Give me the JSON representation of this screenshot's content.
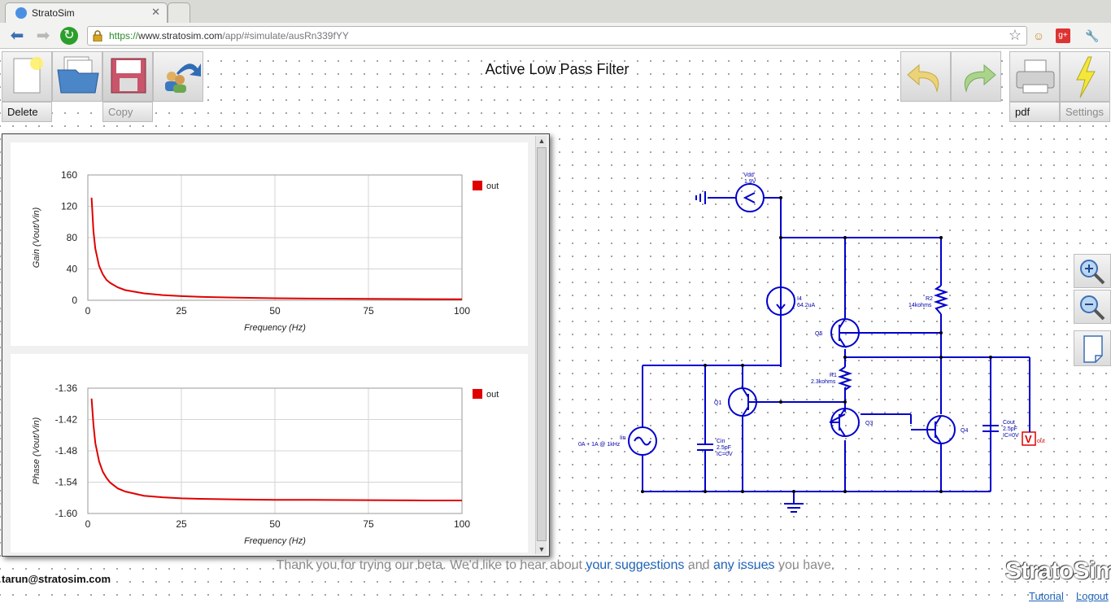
{
  "browser": {
    "tab_title": "StratoSim",
    "tab_close": "✕",
    "url_scheme": "https://",
    "url_host": "www.stratosim.com",
    "url_path": "/app/#simulate/ausRn339fYY"
  },
  "toolbar": {
    "delete_label": "Delete",
    "copy_label": "Copy",
    "pdf_label": "pdf",
    "settings_label": "Settings"
  },
  "document": {
    "title": "Active Low Pass Filter"
  },
  "colors": {
    "series": "#e00000",
    "schematic": "#0000cc",
    "link": "#1f63b8"
  },
  "chart_data": [
    {
      "type": "line",
      "title": "",
      "xlabel": "Frequency (Hz)",
      "ylabel": "Gain (Vout/Vin)",
      "xlim": [
        0,
        100
      ],
      "ylim": [
        0,
        160
      ],
      "x_ticks": [
        "0",
        "25",
        "50",
        "75",
        "100"
      ],
      "y_ticks": [
        "160",
        "120",
        "80",
        "40",
        "0"
      ],
      "grid": true,
      "legend": "top-right",
      "series": [
        {
          "name": "out",
          "x": [
            1,
            1.5,
            2,
            3,
            4,
            5,
            6,
            8,
            10,
            15,
            20,
            25,
            30,
            40,
            50,
            60,
            75,
            90,
            100
          ],
          "y": [
            131,
            88,
            66,
            44,
            33,
            26,
            22,
            16.5,
            13,
            8.8,
            6.6,
            5.3,
            4.4,
            3.3,
            2.6,
            2.2,
            1.8,
            1.5,
            1.3
          ]
        }
      ]
    },
    {
      "type": "line",
      "title": "",
      "xlabel": "Frequency (Hz)",
      "ylabel": "Phase (Vout/Vin)",
      "xlim": [
        0,
        100
      ],
      "ylim": [
        -1.6,
        -1.36
      ],
      "x_ticks": [
        "0",
        "25",
        "50",
        "75",
        "100"
      ],
      "y_ticks": [
        "-1.36",
        "-1.42",
        "-1.48",
        "-1.54",
        "-1.60"
      ],
      "grid": true,
      "legend": "top-right",
      "series": [
        {
          "name": "out",
          "x": [
            1,
            1.5,
            2,
            3,
            4,
            5,
            6,
            8,
            10,
            15,
            20,
            25,
            30,
            40,
            50,
            60,
            75,
            90,
            100
          ],
          "y": [
            -1.38,
            -1.43,
            -1.465,
            -1.5,
            -1.52,
            -1.532,
            -1.541,
            -1.552,
            -1.558,
            -1.566,
            -1.569,
            -1.571,
            -1.572,
            -1.573,
            -1.574,
            -1.574,
            -1.5745,
            -1.575,
            -1.575
          ]
        }
      ]
    }
  ],
  "schematic": {
    "vdd_name": "'Vdd'",
    "vdd_value": "1.9V",
    "i4_name": "I4",
    "i4_value": "64.2uA",
    "r2_name": "R2",
    "r2_value": "14kohms",
    "q5": "Q5",
    "r1_name": "R1",
    "r1_value": "2.3kohms",
    "q1": "Q1",
    "q3": "Q3",
    "q4": "Q4",
    "iin_name": "Iin",
    "iin_value": "0A + 1A @ 1kHz",
    "cin_name": "Cin",
    "cin_value": "2.5pF",
    "cin_ic": "IC=0V",
    "cout_name": "Cout",
    "cout_value": "2.5pF",
    "cout_ic": "IC=0V",
    "probe_letter": "V",
    "probe_label": "out"
  },
  "footer": {
    "msg_1": "Thank you for trying our beta. We'd like to hear about ",
    "link_suggestions": "your suggestions",
    "msg_2": " and ",
    "link_issues": "any issues",
    "msg_3": " you have.",
    "email": "tarun@stratosim.com",
    "brand": "StratoSim",
    "tutorial": "Tutorial",
    "logout": "Logout"
  }
}
